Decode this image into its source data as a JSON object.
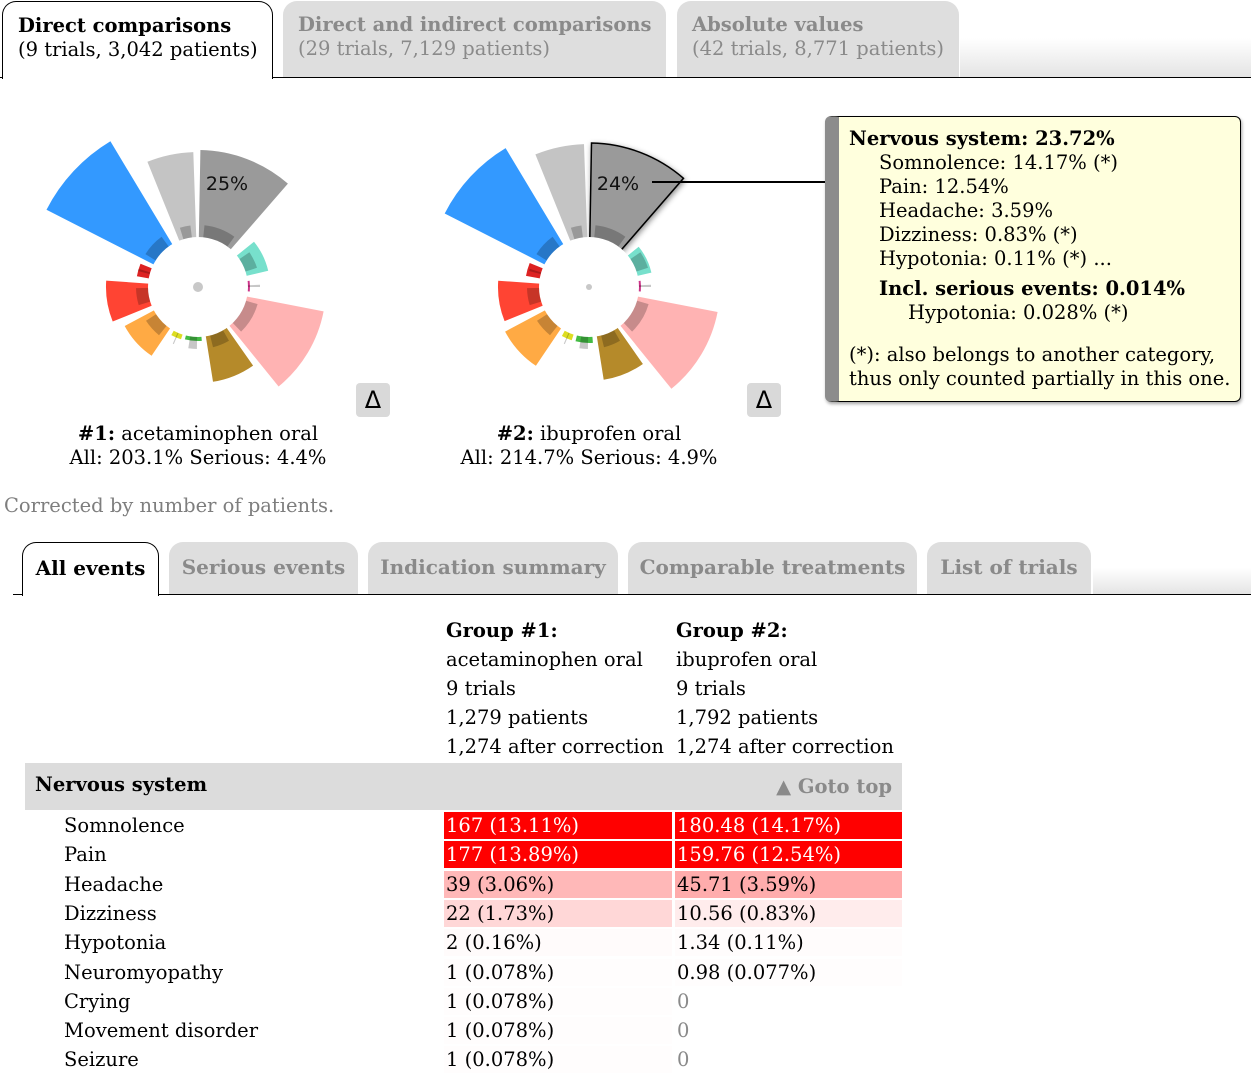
{
  "top_tabs": [
    {
      "title": "Direct comparisons",
      "sub": "(9 trials, 3,042 patients)",
      "active": true
    },
    {
      "title": "Direct and indirect comparisons",
      "sub": "(29 trials, 7,129 patients)",
      "active": false
    },
    {
      "title": "Absolute values",
      "sub": "(42 trials, 8,771 patients)",
      "active": false
    }
  ],
  "charts": [
    {
      "num": "#1:",
      "drug": "acetaminophen oral",
      "stats": "All: 203.1% Serious: 4.4%",
      "highlight_label": "25%",
      "delta": "Δ"
    },
    {
      "num": "#2:",
      "drug": "ibuprofen oral",
      "stats": "All: 214.7% Serious: 4.9%",
      "highlight_label": "24%",
      "delta": "Δ"
    }
  ],
  "tooltip": {
    "header": "Nervous system: 23.72%",
    "items": [
      "Somnolence: 14.17% (*)",
      "Pain: 12.54%",
      "Headache: 3.59%",
      "Dizziness: 0.83% (*)",
      "Hypotonia: 0.11% (*) ..."
    ],
    "serious_header": "Incl. serious events: 0.014%",
    "serious_items": [
      "Hypotonia: 0.028% (*)"
    ],
    "note_line1": "(*): also belongs to another category,",
    "note_line2": "thus only counted partially in this one."
  },
  "corrected_note": "Corrected by number of patients.",
  "bottom_tabs": [
    "All events",
    "Serious events",
    "Indication summary",
    "Comparable treatments",
    "List of trials"
  ],
  "groups": [
    {
      "title": "Group #1:",
      "drug": "acetaminophen oral",
      "trials": "9 trials",
      "patients": "1,279 patients",
      "corrected": "1,274 after correction"
    },
    {
      "title": "Group #2:",
      "drug": "ibuprofen oral",
      "trials": "9 trials",
      "patients": "1,792 patients",
      "corrected": "1,274 after correction"
    }
  ],
  "section": {
    "title": "Nervous system",
    "goto_top": "▲ Goto top"
  },
  "rows": [
    {
      "name": "Somnolence",
      "c1": "167 (13.11%)",
      "c1_pct": 13.11,
      "c2": "180.48 (14.17%)",
      "c2_pct": 14.17
    },
    {
      "name": "Pain",
      "c1": "177 (13.89%)",
      "c1_pct": 13.89,
      "c2": "159.76 (12.54%)",
      "c2_pct": 12.54
    },
    {
      "name": "Headache",
      "c1": "39 (3.06%)",
      "c1_pct": 3.06,
      "c2": "45.71 (3.59%)",
      "c2_pct": 3.59
    },
    {
      "name": "Dizziness",
      "c1": "22 (1.73%)",
      "c1_pct": 1.73,
      "c2": "10.56 (0.83%)",
      "c2_pct": 0.83
    },
    {
      "name": "Hypotonia",
      "c1": "2 (0.16%)",
      "c1_pct": 0.16,
      "c2": "1.34 (0.11%)",
      "c2_pct": 0.11
    },
    {
      "name": "Neuromyopathy",
      "c1": "1 (0.078%)",
      "c1_pct": 0.078,
      "c2": "0.98 (0.077%)",
      "c2_pct": 0.077
    },
    {
      "name": "Crying",
      "c1": "1 (0.078%)",
      "c1_pct": 0.078,
      "c2": "0",
      "c2_pct": 0
    },
    {
      "name": "Movement disorder",
      "c1": "1 (0.078%)",
      "c1_pct": 0.078,
      "c2": "0",
      "c2_pct": 0
    },
    {
      "name": "Seizure",
      "c1": "1 (0.078%)",
      "c1_pct": 0.078,
      "c2": "0",
      "c2_pct": 0
    }
  ],
  "colors": {
    "cell_red": "#ff0000",
    "tooltip_bg": "#ffffdd",
    "tab_inactive": "#dedede"
  }
}
